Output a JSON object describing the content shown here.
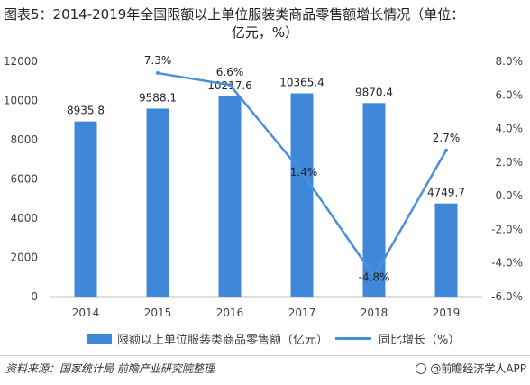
{
  "title": {
    "line1": "图表5：2014-2019年全国限额以上单位服装类商品零售额增长情况（单位：",
    "line2": "亿元，%）"
  },
  "colors": {
    "bar": "#3f87d9",
    "line": "#4a8fde"
  },
  "legend": {
    "bar_label": "限额以上单位服装类商品零售额（亿元）",
    "line_label": "同比增长（%）"
  },
  "footer": {
    "source": "资料来源：国家统计局 前瞻产业研究院整理",
    "brand": "@前瞻经济学人APP"
  },
  "chart_data": {
    "type": "bar",
    "categories": [
      "2014",
      "2015",
      "2016",
      "2017",
      "2018",
      "2019"
    ],
    "series": [
      {
        "name": "限额以上单位服装类商品零售额（亿元）",
        "type": "bar",
        "axis": "left",
        "values": [
          8935.8,
          9588.1,
          10217.6,
          10365.4,
          9870.4,
          4749.7
        ],
        "labels": [
          "8935.8",
          "9588.1",
          "10217.6",
          "10365.4",
          "9870.4",
          "4749.7"
        ]
      },
      {
        "name": "同比增长（%）",
        "type": "line",
        "axis": "right",
        "x": [
          "2015",
          "2016",
          "2017",
          "2018",
          "2019"
        ],
        "values": [
          7.3,
          6.6,
          1.4,
          -4.8,
          2.7
        ],
        "labels": [
          "7.3%",
          "6.6%",
          "1.4%",
          "-4.8%",
          "2.7%"
        ]
      }
    ],
    "ylim_left": [
      0,
      12000
    ],
    "ylim_right": [
      -6.0,
      8.0
    ],
    "yticks_left": [
      "0",
      "2000",
      "4000",
      "6000",
      "8000",
      "10000",
      "12000"
    ],
    "yticks_right": [
      "-6.0%",
      "-4.0%",
      "-2.0%",
      "0.0%",
      "2.0%",
      "4.0%",
      "6.0%",
      "8.0%"
    ],
    "grid": false,
    "legend_position": "bottom"
  }
}
